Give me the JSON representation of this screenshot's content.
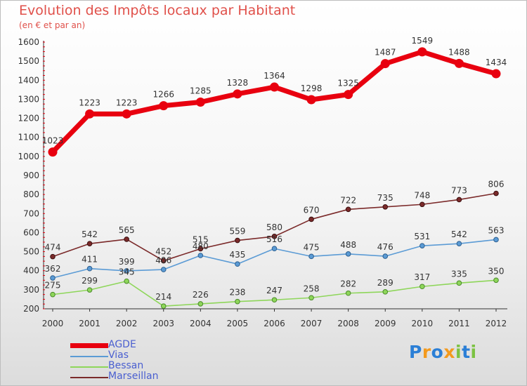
{
  "colors": {
    "agde": "#e8000f",
    "vias": "#5b9bd5",
    "bessan": "#8ed65a",
    "marseillan": "#7b2a2a",
    "title": "#e0504a",
    "legend_text": "#4a5fd0"
  },
  "logo": {
    "text": "Proxiti"
  },
  "chart_data": {
    "type": "line",
    "title": "Evolution des Impôts locaux par Habitant",
    "subtitle": "(en € et par an)",
    "x": [
      "2000",
      "2001",
      "2002",
      "2003",
      "2004",
      "2005",
      "2006",
      "2007",
      "2008",
      "2009",
      "2010",
      "2011",
      "2012"
    ],
    "yticks": [
      200,
      300,
      400,
      500,
      600,
      700,
      800,
      900,
      1000,
      1100,
      1200,
      1300,
      1400,
      1500,
      1600
    ],
    "ylim": [
      200,
      1600
    ],
    "grid": false,
    "legend_position": "bottom-left",
    "series": [
      {
        "name": "AGDE",
        "color": "#e8000f",
        "values": [
          1023,
          1223,
          1223,
          1266,
          1285,
          1328,
          1364,
          1298,
          1325,
          1487,
          1549,
          1488,
          1434
        ]
      },
      {
        "name": "Vias",
        "color": "#5b9bd5",
        "values": [
          362,
          411,
          399,
          406,
          480,
          435,
          516,
          475,
          488,
          476,
          531,
          542,
          563
        ]
      },
      {
        "name": "Bessan",
        "color": "#8ed65a",
        "values": [
          275,
          299,
          345,
          214,
          226,
          238,
          247,
          258,
          282,
          289,
          317,
          335,
          350
        ]
      },
      {
        "name": "Marseillan",
        "color": "#7b2a2a",
        "values": [
          474,
          542,
          565,
          452,
          515,
          559,
          580,
          670,
          722,
          735,
          748,
          773,
          806
        ]
      }
    ]
  }
}
